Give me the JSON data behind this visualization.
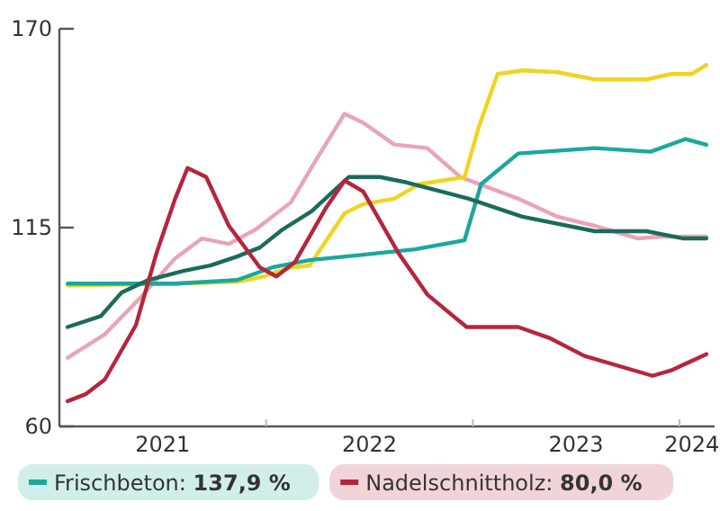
{
  "chart_data": {
    "type": "line",
    "xlim": [
      2021,
      2024.17
    ],
    "ylim": [
      60,
      170
    ],
    "yticks": [
      60,
      115,
      170
    ],
    "xticks": [
      {
        "value": 2021.5,
        "label": "2021"
      },
      {
        "value": 2022,
        "label": null
      },
      {
        "value": 2022.5,
        "label": "2022"
      },
      {
        "value": 2023,
        "label": null
      },
      {
        "value": 2023.5,
        "label": "2023"
      },
      {
        "value": 2024,
        "label": null
      },
      {
        "value": 2024.06,
        "label": "2024"
      }
    ],
    "grid": false,
    "legend": "bottom",
    "marker": "none",
    "line_style": "solid",
    "series": [
      {
        "color": "#e8a5b5",
        "x": [
          2021.04,
          2021.22,
          2021.39,
          2021.56,
          2021.69,
          2021.82,
          2021.95,
          2022.12,
          2022.25,
          2022.38,
          2022.47,
          2022.62,
          2022.78,
          2022.94,
          2023.22,
          2023.41,
          2023.59,
          2023.8,
          2023.91,
          2024.13
        ],
        "values": [
          79,
          85.5,
          95.5,
          106.5,
          112,
          110.5,
          114.5,
          122,
          134.5,
          146.5,
          144,
          138,
          137,
          129,
          123,
          118,
          115.5,
          112,
          112.5,
          112.5
        ]
      },
      {
        "color": "#f0d421",
        "x": [
          2021.04,
          2021.56,
          2021.86,
          2021.99,
          2022.12,
          2022.21,
          2022.38,
          2022.47,
          2022.62,
          2022.74,
          2022.96,
          2023.03,
          2023.12,
          2023.24,
          2023.41,
          2023.59,
          2023.84,
          2023.96,
          2024.06,
          2024.13
        ],
        "values": [
          99,
          99.5,
          100,
          101.5,
          104,
          104.5,
          119,
          121.5,
          123,
          127,
          129,
          143,
          157.5,
          158.5,
          158,
          156,
          156,
          157.5,
          157.5,
          160
        ]
      },
      {
        "name": "Frischbeton: 137,9 %",
        "color": "#1aa89c",
        "x": [
          2021.04,
          2021.56,
          2021.86,
          2022.03,
          2022.21,
          2022.47,
          2022.72,
          2022.96,
          2023.04,
          2023.22,
          2023.59,
          2023.86,
          2024.03,
          2024.13
        ],
        "values": [
          99.5,
          99.5,
          100.5,
          104,
          106,
          107.5,
          109,
          111.5,
          127,
          135.5,
          137,
          136,
          139.5,
          137.9
        ]
      },
      {
        "color": "#1a6b5a",
        "x": [
          2021.04,
          2021.2,
          2021.3,
          2021.43,
          2021.6,
          2021.73,
          2021.86,
          2021.97,
          2022.08,
          2022.22,
          2022.4,
          2022.55,
          2022.68,
          2022.98,
          2023.24,
          2023.59,
          2023.84,
          2024.02,
          2024.13
        ],
        "values": [
          87.5,
          90.5,
          97,
          100.5,
          103,
          104.5,
          107,
          109.5,
          114.5,
          119.5,
          129,
          129,
          127.5,
          123,
          118,
          114,
          114,
          112,
          112
        ]
      },
      {
        "name": "Nadelschnittholz: 80,0 %",
        "color": "#b5263e",
        "x": [
          2021.04,
          2021.13,
          2021.22,
          2021.37,
          2021.47,
          2021.56,
          2021.62,
          2021.71,
          2021.82,
          2021.97,
          2022.05,
          2022.14,
          2022.29,
          2022.38,
          2022.47,
          2022.64,
          2022.78,
          2022.97,
          2023.22,
          2023.37,
          2023.54,
          2023.87,
          2023.96,
          2024.13
        ],
        "values": [
          67,
          69,
          73,
          88,
          108,
          123,
          131.5,
          129,
          115.5,
          104,
          101.5,
          105.5,
          120.5,
          128,
          125,
          108,
          96.5,
          87.5,
          87.5,
          84.5,
          79.5,
          74,
          75.5,
          80
        ]
      }
    ]
  }
}
